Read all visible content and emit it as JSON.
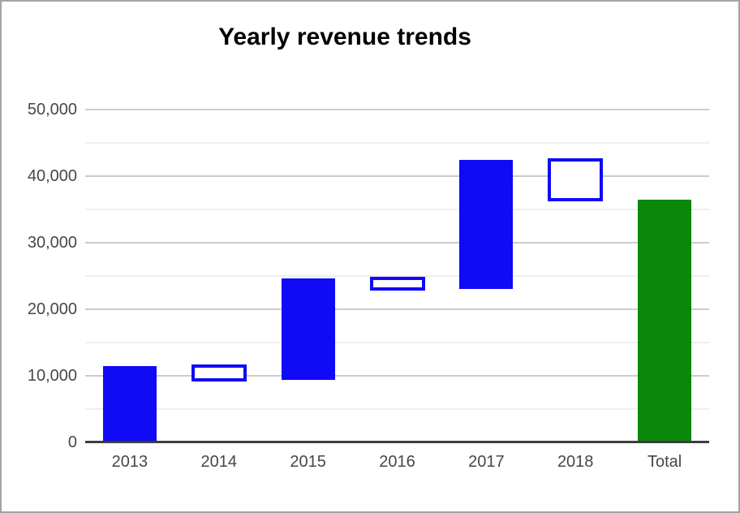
{
  "chart_data": {
    "type": "waterfall",
    "title": "Yearly revenue trends",
    "categories": [
      "2013",
      "2014",
      "2015",
      "2016",
      "2017",
      "2018",
      "Total"
    ],
    "bars": [
      {
        "label": "2013",
        "kind": "increase",
        "delta": 11500,
        "from": 0,
        "to": 11500
      },
      {
        "label": "2014",
        "kind": "decrease",
        "delta": -2100,
        "from": 11500,
        "to": 9400
      },
      {
        "label": "2015",
        "kind": "increase",
        "delta": 15200,
        "from": 9400,
        "to": 24600
      },
      {
        "label": "2016",
        "kind": "decrease",
        "delta": -1600,
        "from": 24600,
        "to": 23000
      },
      {
        "label": "2017",
        "kind": "increase",
        "delta": 19400,
        "from": 23000,
        "to": 42400
      },
      {
        "label": "2018",
        "kind": "decrease",
        "delta": -5900,
        "from": 42400,
        "to": 36500
      },
      {
        "label": "Total",
        "kind": "total",
        "delta": 36500,
        "from": 0,
        "to": 36500
      }
    ],
    "y_axis": {
      "min": 0,
      "max": 50000,
      "major_step": 10000,
      "minor_step": 5000,
      "tick_labels": [
        "0",
        "10,000",
        "20,000",
        "30,000",
        "40,000",
        "50,000"
      ]
    },
    "x_axis": {
      "labels": [
        "2013",
        "2014",
        "2015",
        "2016",
        "2017",
        "2018",
        "Total"
      ]
    },
    "grid": true,
    "legend": "none",
    "colors": {
      "increase": "#100af5",
      "decrease_border": "#100af5",
      "decrease_fill": "#ffffff",
      "total": "#0a880a",
      "grid_major": "#cccccc",
      "grid_minor": "#eeeeee",
      "axis_line": "#3d3d3d",
      "axis_label": "#474747",
      "title": "#000000"
    }
  }
}
